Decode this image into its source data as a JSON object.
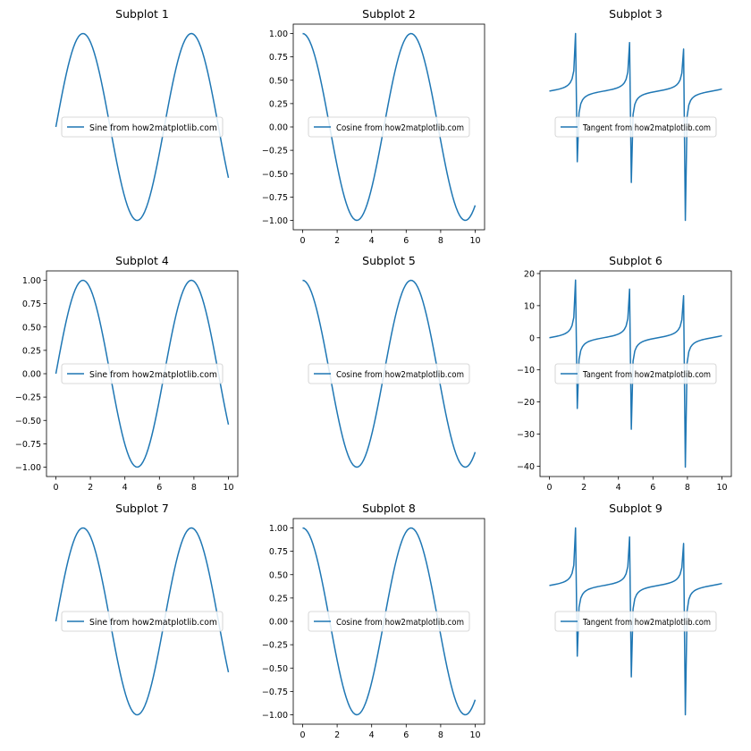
{
  "chart_data": [
    {
      "type": "line",
      "title": "Subplot 1",
      "func": "sin",
      "x_range": [
        0,
        10
      ],
      "axes_visible": false,
      "legend": {
        "label": "Sine from how2matplotlib.com",
        "loc": "center"
      },
      "line_color": "#1f77b4"
    },
    {
      "type": "line",
      "title": "Subplot 2",
      "func": "cos",
      "x_range": [
        0,
        10
      ],
      "axes_visible": true,
      "ylim": [
        -1.0,
        1.0
      ],
      "xticks": [
        0,
        2,
        4,
        6,
        8,
        10
      ],
      "xtick_labels": [
        "0",
        "2",
        "4",
        "6",
        "8",
        "10"
      ],
      "yticks": [
        1.0,
        0.75,
        0.5,
        0.25,
        0.0,
        -0.25,
        -0.5,
        -0.75,
        -1.0
      ],
      "ytick_labels": [
        "1.00",
        "0.75",
        "0.50",
        "0.25",
        "0.00",
        "−0.25",
        "−0.50",
        "−0.75",
        "−1.00"
      ],
      "legend": {
        "label": "Cosine from how2matplotlib.com",
        "loc": "center"
      },
      "line_color": "#1f77b4"
    },
    {
      "type": "line",
      "title": "Subplot 3",
      "func": "tan",
      "x_range": [
        0,
        10
      ],
      "axes_visible": false,
      "legend": {
        "label": "Tangent from how2matplotlib.com",
        "loc": "center"
      },
      "line_color": "#1f77b4"
    },
    {
      "type": "line",
      "title": "Subplot 4",
      "func": "sin",
      "x_range": [
        0,
        10
      ],
      "axes_visible": true,
      "ylim": [
        -1.0,
        1.0
      ],
      "xticks": [
        0,
        2,
        4,
        6,
        8,
        10
      ],
      "xtick_labels": [
        "0",
        "2",
        "4",
        "6",
        "8",
        "10"
      ],
      "yticks": [
        1.0,
        0.75,
        0.5,
        0.25,
        0.0,
        -0.25,
        -0.5,
        -0.75,
        -1.0
      ],
      "ytick_labels": [
        "1.00",
        "0.75",
        "0.50",
        "0.25",
        "0.00",
        "−0.25",
        "−0.50",
        "−0.75",
        "−1.00"
      ],
      "legend": {
        "label": "Sine from how2matplotlib.com",
        "loc": "center"
      },
      "line_color": "#1f77b4"
    },
    {
      "type": "line",
      "title": "Subplot 5",
      "func": "cos",
      "x_range": [
        0,
        10
      ],
      "axes_visible": false,
      "legend": {
        "label": "Cosine from how2matplotlib.com",
        "loc": "center"
      },
      "line_color": "#1f77b4"
    },
    {
      "type": "line",
      "title": "Subplot 6",
      "func": "tan",
      "x_range": [
        0,
        10
      ],
      "axes_visible": true,
      "ylim": [
        -40.3,
        17.9
      ],
      "xticks": [
        0,
        2,
        4,
        6,
        8,
        10
      ],
      "xtick_labels": [
        "0",
        "2",
        "4",
        "6",
        "8",
        "10"
      ],
      "yticks": [
        20,
        10,
        0,
        -10,
        -20,
        -30,
        -40
      ],
      "ytick_labels": [
        "20",
        "10",
        "0",
        "−10",
        "−20",
        "−30",
        "−40"
      ],
      "legend": {
        "label": "Tangent from how2matplotlib.com",
        "loc": "center"
      },
      "line_color": "#1f77b4"
    },
    {
      "type": "line",
      "title": "Subplot 7",
      "func": "sin",
      "x_range": [
        0,
        10
      ],
      "axes_visible": false,
      "legend": {
        "label": "Sine from how2matplotlib.com",
        "loc": "center"
      },
      "line_color": "#1f77b4"
    },
    {
      "type": "line",
      "title": "Subplot 8",
      "func": "cos",
      "x_range": [
        0,
        10
      ],
      "axes_visible": true,
      "ylim": [
        -1.0,
        1.0
      ],
      "xticks": [
        0,
        2,
        4,
        6,
        8,
        10
      ],
      "xtick_labels": [
        "0",
        "2",
        "4",
        "6",
        "8",
        "10"
      ],
      "yticks": [
        1.0,
        0.75,
        0.5,
        0.25,
        0.0,
        -0.25,
        -0.5,
        -0.75,
        -1.0
      ],
      "ytick_labels": [
        "1.00",
        "0.75",
        "0.50",
        "0.25",
        "0.00",
        "−0.25",
        "−0.50",
        "−0.75",
        "−1.00"
      ],
      "legend": {
        "label": "Cosine from how2matplotlib.com",
        "loc": "center"
      },
      "line_color": "#1f77b4"
    },
    {
      "type": "line",
      "title": "Subplot 9",
      "func": "tan",
      "x_range": [
        0,
        10
      ],
      "axes_visible": false,
      "legend": {
        "label": "Tangent from how2matplotlib.com",
        "loc": "center"
      },
      "line_color": "#1f77b4"
    }
  ]
}
